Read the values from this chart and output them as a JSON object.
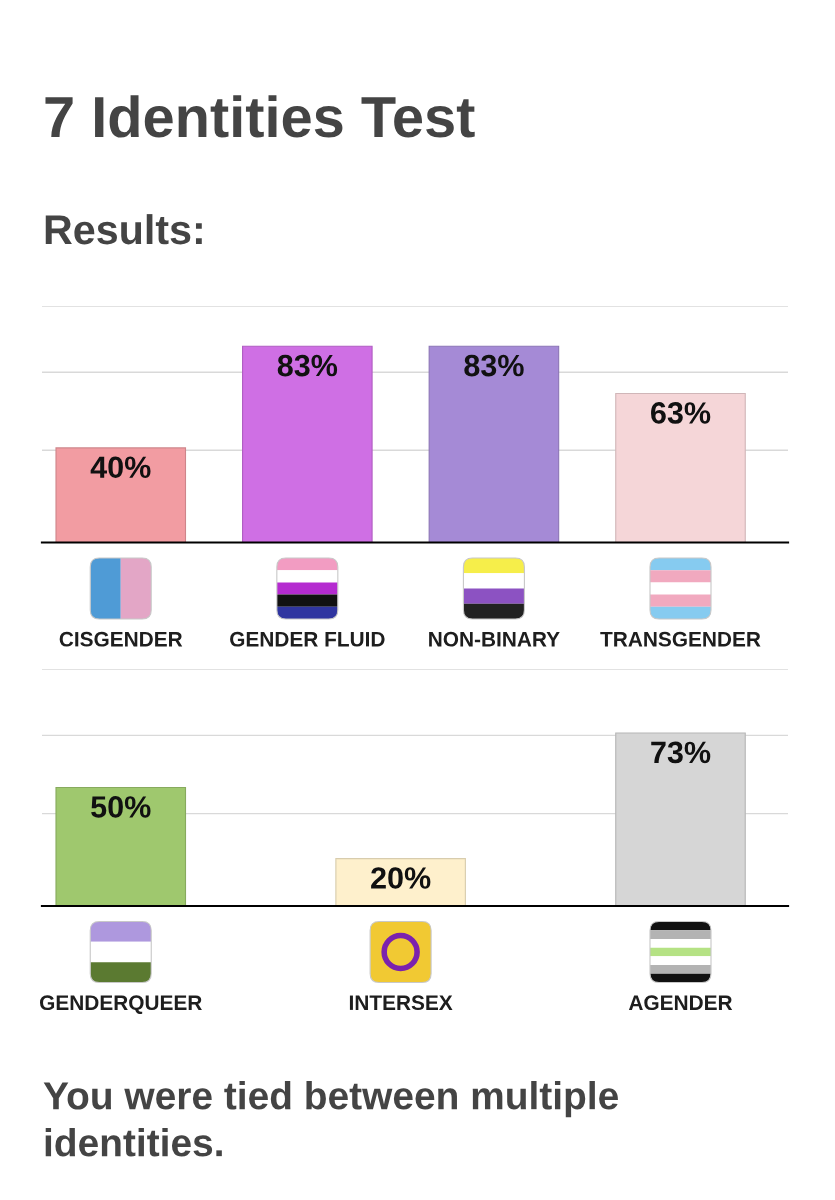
{
  "chart_data": [
    {
      "type": "bar",
      "title": "7 Identities Test",
      "subtitle": "Results:",
      "categories": [
        "CISGENDER",
        "GENDER FLUID",
        "NON-BINARY",
        "TRANSGENDER"
      ],
      "values": [
        40,
        83,
        83,
        63
      ],
      "value_labels": [
        "40%",
        "83%",
        "83%",
        "63%"
      ],
      "colors": [
        "#f29ca2",
        "#cf6fe4",
        "#a58ad6",
        "#f5d6d8"
      ],
      "ylim": [
        0,
        100
      ],
      "yticks": [
        {
          "value": 39,
          "label": null
        },
        {
          "value": 72,
          "label": null
        },
        {
          "value": 100,
          "label": null
        }
      ],
      "grid": "y",
      "tick_labels": "x"
    },
    {
      "type": "bar",
      "categories": [
        "GENDERQUEER",
        "INTERSEX",
        "AGENDER"
      ],
      "values": [
        50,
        20,
        73
      ],
      "value_labels": [
        "50%",
        "20%",
        "73%"
      ],
      "colors": [
        "#9fc86e",
        "#fef0cc",
        "#d6d6d6"
      ],
      "ylim": [
        0,
        100
      ],
      "yticks": [
        {
          "value": 39,
          "label": null
        },
        {
          "value": 72,
          "label": null
        },
        {
          "value": 100,
          "label": null
        }
      ],
      "grid": "y",
      "tick_labels": "x",
      "annotations": [
        "You were tied between multiple identities."
      ]
    }
  ]
}
